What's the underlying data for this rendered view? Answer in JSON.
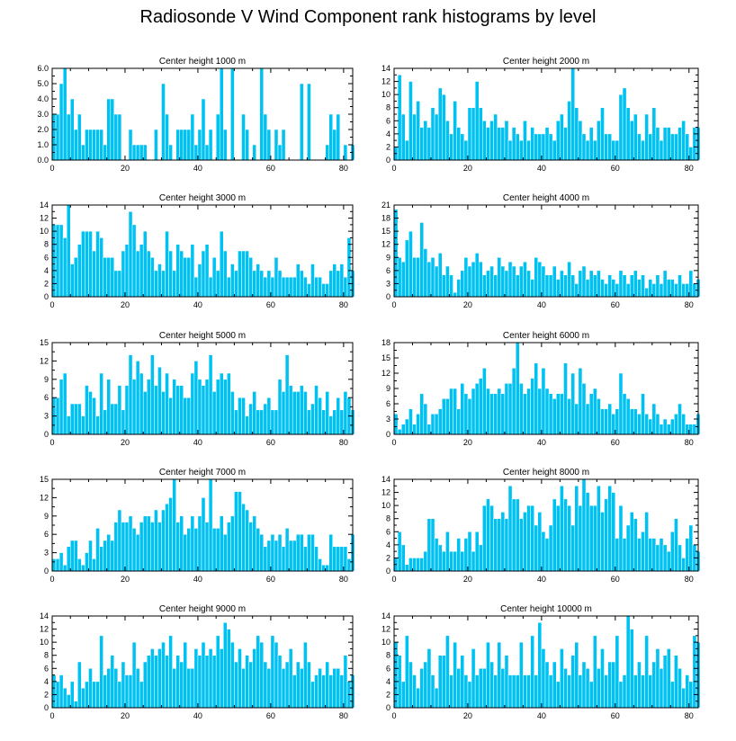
{
  "title": "Radiosonde V Wind Component rank histograms by level",
  "colors": {
    "bar": "#00c2f2",
    "bar_edge": "#ffffff",
    "axis": "#000000"
  },
  "chart_data": [
    {
      "type": "bar",
      "title": "Center height 1000 m",
      "x_ticks": [
        0,
        20,
        40,
        60,
        80
      ],
      "y_ticks": [
        "0.0",
        "1.0",
        "2.0",
        "3.0",
        "4.0",
        "5.0",
        "6.0"
      ],
      "ylim": [
        0,
        6
      ],
      "values": [
        3,
        3,
        5,
        6,
        3,
        4,
        2,
        3,
        1,
        2,
        2,
        2,
        2,
        2,
        1,
        4,
        4,
        3,
        3,
        0,
        0,
        2,
        1,
        1,
        1,
        1,
        0,
        0,
        2,
        0,
        5,
        3,
        1,
        0,
        2,
        2,
        2,
        2,
        3,
        1,
        2,
        4,
        1,
        2,
        0,
        3,
        6,
        2,
        0,
        6,
        0,
        0,
        3,
        2,
        0,
        1,
        0,
        6,
        3,
        2,
        0,
        2,
        1,
        2,
        0,
        0,
        0,
        0,
        5,
        0,
        5,
        0,
        0,
        0,
        0,
        1,
        3,
        2,
        3,
        0,
        1,
        0,
        1
      ],
      "xlabel": "",
      "ylabel": ""
    },
    {
      "type": "bar",
      "title": "Center height 2000 m",
      "x_ticks": [
        0,
        20,
        40,
        60,
        80
      ],
      "y_ticks": [
        "0",
        "2",
        "4",
        "6",
        "8",
        "10",
        "12",
        "14"
      ],
      "ylim": [
        0,
        14
      ],
      "values": [
        2,
        13,
        7,
        3,
        12,
        7,
        9,
        5,
        6,
        5,
        8,
        7,
        11,
        10,
        6,
        4,
        9,
        5,
        4,
        3,
        8,
        8,
        12,
        8,
        6,
        5,
        6,
        7,
        5,
        5,
        6,
        3,
        5,
        4,
        3,
        6,
        3,
        5,
        4,
        4,
        4,
        5,
        4,
        3,
        6,
        7,
        5,
        9,
        14,
        8,
        6,
        4,
        3,
        5,
        3,
        6,
        8,
        4,
        4,
        3,
        3,
        10,
        11,
        8,
        6,
        7,
        4,
        3,
        7,
        4,
        8,
        5,
        3,
        5,
        5,
        4,
        4,
        5,
        6,
        4,
        2,
        5,
        5
      ],
      "xlabel": "",
      "ylabel": ""
    },
    {
      "type": "bar",
      "title": "Center height 3000 m",
      "x_ticks": [
        0,
        20,
        40,
        60,
        80
      ],
      "y_ticks": [
        "0",
        "2",
        "4",
        "6",
        "8",
        "10",
        "12",
        "14"
      ],
      "ylim": [
        0,
        14
      ],
      "values": [
        11,
        11,
        11,
        9,
        14,
        5,
        6,
        8,
        10,
        10,
        10,
        7,
        10,
        9,
        6,
        6,
        6,
        4,
        4,
        7,
        8,
        13,
        11,
        7,
        8,
        10,
        7,
        6,
        4,
        5,
        4,
        10,
        7,
        4,
        8,
        7,
        6,
        6,
        8,
        3,
        5,
        7,
        8,
        3,
        6,
        4,
        10,
        7,
        3,
        5,
        4,
        7,
        7,
        7,
        6,
        4,
        5,
        4,
        3,
        4,
        3,
        6,
        4,
        3,
        3,
        3,
        3,
        5,
        4,
        3,
        2,
        5,
        3,
        3,
        2,
        2,
        4,
        5,
        4,
        5,
        3,
        9,
        4
      ],
      "xlabel": "",
      "ylabel": ""
    },
    {
      "type": "bar",
      "title": "Center height 4000 m",
      "x_ticks": [
        0,
        20,
        40,
        60,
        80
      ],
      "y_ticks": [
        "0",
        "3",
        "6",
        "9",
        "12",
        "15",
        "18",
        "21"
      ],
      "ylim": [
        0,
        21
      ],
      "values": [
        20,
        9,
        8,
        13,
        15,
        9,
        9,
        17,
        11,
        8,
        9,
        7,
        10,
        5,
        7,
        5,
        1,
        4,
        6,
        9,
        7,
        8,
        10,
        8,
        5,
        6,
        7,
        5,
        9,
        7,
        6,
        8,
        7,
        5,
        7,
        8,
        6,
        4,
        9,
        8,
        7,
        5,
        5,
        7,
        4,
        6,
        5,
        8,
        5,
        3,
        6,
        7,
        4,
        6,
        5,
        6,
        4,
        3,
        5,
        4,
        3,
        6,
        5,
        3,
        5,
        6,
        4,
        5,
        2,
        4,
        3,
        5,
        3,
        6,
        4,
        4,
        3,
        5,
        3,
        3,
        6,
        3,
        4
      ],
      "xlabel": "",
      "ylabel": ""
    },
    {
      "type": "bar",
      "title": "Center height 5000 m",
      "x_ticks": [
        0,
        20,
        40,
        60,
        80
      ],
      "y_ticks": [
        "0",
        "3",
        "6",
        "9",
        "12",
        "15"
      ],
      "ylim": [
        0,
        15
      ],
      "values": [
        6,
        6,
        9,
        10,
        3,
        5,
        5,
        5,
        3,
        8,
        7,
        6,
        3,
        10,
        4,
        9,
        5,
        5,
        8,
        4,
        8,
        13,
        9,
        12,
        10,
        7,
        9,
        13,
        8,
        11,
        7,
        10,
        6,
        9,
        8,
        8,
        6,
        6,
        10,
        12,
        9,
        8,
        9,
        13,
        7,
        9,
        10,
        9,
        10,
        7,
        4,
        6,
        6,
        3,
        5,
        7,
        4,
        4,
        5,
        6,
        4,
        4,
        9,
        7,
        13,
        8,
        7,
        7,
        8,
        7,
        4,
        5,
        8,
        6,
        4,
        7,
        3,
        4,
        6,
        4,
        7,
        6,
        4
      ],
      "xlabel": "",
      "ylabel": ""
    },
    {
      "type": "bar",
      "title": "Center height 6000 m",
      "x_ticks": [
        0,
        20,
        40,
        60,
        80
      ],
      "y_ticks": [
        "0",
        "3",
        "6",
        "9",
        "12",
        "15",
        "18"
      ],
      "ylim": [
        0,
        18
      ],
      "values": [
        4,
        1,
        2,
        3,
        5,
        2,
        4,
        8,
        6,
        2,
        4,
        4,
        5,
        7,
        7,
        9,
        9,
        5,
        10,
        8,
        7,
        9,
        10,
        11,
        13,
        9,
        8,
        8,
        9,
        8,
        10,
        10,
        13,
        18,
        10,
        8,
        9,
        11,
        14,
        9,
        13,
        9,
        8,
        7,
        8,
        8,
        14,
        7,
        12,
        6,
        13,
        10,
        6,
        8,
        9,
        7,
        5,
        5,
        6,
        4,
        5,
        12,
        8,
        7,
        5,
        5,
        4,
        8,
        4,
        3,
        6,
        4,
        2,
        3,
        2,
        3,
        4,
        6,
        4,
        2,
        2,
        2,
        4
      ],
      "xlabel": "",
      "ylabel": ""
    },
    {
      "type": "bar",
      "title": "Center height 7000 m",
      "x_ticks": [
        0,
        20,
        40,
        60,
        80
      ],
      "y_ticks": [
        "0",
        "3",
        "6",
        "9",
        "12",
        "15"
      ],
      "ylim": [
        0,
        15
      ],
      "values": [
        2,
        2,
        3,
        1,
        4,
        5,
        5,
        2,
        1,
        3,
        5,
        2,
        7,
        4,
        5,
        6,
        5,
        8,
        10,
        8,
        8,
        9,
        7,
        6,
        8,
        9,
        9,
        8,
        10,
        8,
        10,
        11,
        12,
        15,
        8,
        9,
        6,
        7,
        9,
        7,
        9,
        12,
        8,
        15,
        7,
        7,
        9,
        6,
        8,
        9,
        13,
        13,
        11,
        10,
        8,
        9,
        7,
        6,
        4,
        5,
        6,
        5,
        6,
        4,
        7,
        5,
        5,
        6,
        6,
        4,
        6,
        6,
        4,
        2,
        1,
        1,
        6,
        4,
        4,
        4,
        4,
        2,
        6
      ],
      "xlabel": "",
      "ylabel": ""
    },
    {
      "type": "bar",
      "title": "Center height 8000 m",
      "x_ticks": [
        0,
        20,
        40,
        60,
        80
      ],
      "y_ticks": [
        "0",
        "2",
        "4",
        "6",
        "8",
        "10",
        "12",
        "14"
      ],
      "ylim": [
        0,
        14
      ],
      "values": [
        2,
        6,
        4,
        1,
        2,
        2,
        2,
        2,
        3,
        8,
        8,
        5,
        4,
        3,
        6,
        3,
        3,
        5,
        3,
        5,
        6,
        3,
        6,
        4,
        10,
        11,
        10,
        8,
        8,
        9,
        8,
        13,
        11,
        11,
        8,
        9,
        10,
        10,
        7,
        9,
        6,
        5,
        7,
        11,
        10,
        13,
        11,
        10,
        7,
        13,
        10,
        14,
        12,
        10,
        10,
        13,
        9,
        11,
        13,
        12,
        5,
        10,
        5,
        7,
        9,
        8,
        5,
        6,
        9,
        5,
        5,
        4,
        5,
        4,
        3,
        6,
        8,
        4,
        2,
        5,
        7,
        4,
        3
      ],
      "xlabel": "",
      "ylabel": ""
    },
    {
      "type": "bar",
      "title": "Center height 9000 m",
      "x_ticks": [
        0,
        20,
        40,
        60,
        80
      ],
      "y_ticks": [
        "0",
        "2",
        "4",
        "6",
        "8",
        "10",
        "12",
        "14"
      ],
      "ylim": [
        0,
        14
      ],
      "values": [
        5,
        4,
        5,
        3,
        2,
        4,
        1,
        7,
        3,
        4,
        6,
        4,
        4,
        11,
        5,
        6,
        8,
        6,
        4,
        7,
        5,
        5,
        10,
        6,
        4,
        7,
        8,
        9,
        8,
        9,
        10,
        8,
        11,
        6,
        8,
        7,
        10,
        6,
        6,
        9,
        8,
        10,
        8,
        9,
        8,
        11,
        9,
        13,
        12,
        10,
        7,
        9,
        6,
        8,
        7,
        9,
        11,
        10,
        7,
        6,
        11,
        10,
        8,
        6,
        7,
        9,
        5,
        7,
        6,
        10,
        7,
        4,
        5,
        6,
        5,
        7,
        5,
        6,
        6,
        5,
        8,
        4,
        5
      ],
      "xlabel": "",
      "ylabel": ""
    },
    {
      "type": "bar",
      "title": "Center height 10000 m",
      "x_ticks": [
        0,
        20,
        40,
        60,
        80
      ],
      "y_ticks": [
        "0",
        "2",
        "4",
        "6",
        "8",
        "10",
        "12",
        "14"
      ],
      "ylim": [
        0,
        14
      ],
      "values": [
        10,
        8,
        4,
        11,
        7,
        5,
        3,
        6,
        7,
        9,
        5,
        3,
        8,
        8,
        11,
        5,
        10,
        6,
        8,
        5,
        4,
        9,
        5,
        6,
        6,
        10,
        7,
        5,
        10,
        6,
        8,
        5,
        5,
        5,
        10,
        5,
        5,
        11,
        5,
        13,
        9,
        7,
        5,
        7,
        4,
        9,
        6,
        5,
        8,
        10,
        5,
        7,
        6,
        4,
        11,
        6,
        9,
        5,
        7,
        7,
        11,
        4,
        5,
        14,
        12,
        5,
        7,
        5,
        11,
        5,
        7,
        9,
        6,
        8,
        9,
        4,
        8,
        6,
        3,
        5,
        4,
        11,
        10
      ],
      "xlabel": "",
      "ylabel": ""
    }
  ]
}
